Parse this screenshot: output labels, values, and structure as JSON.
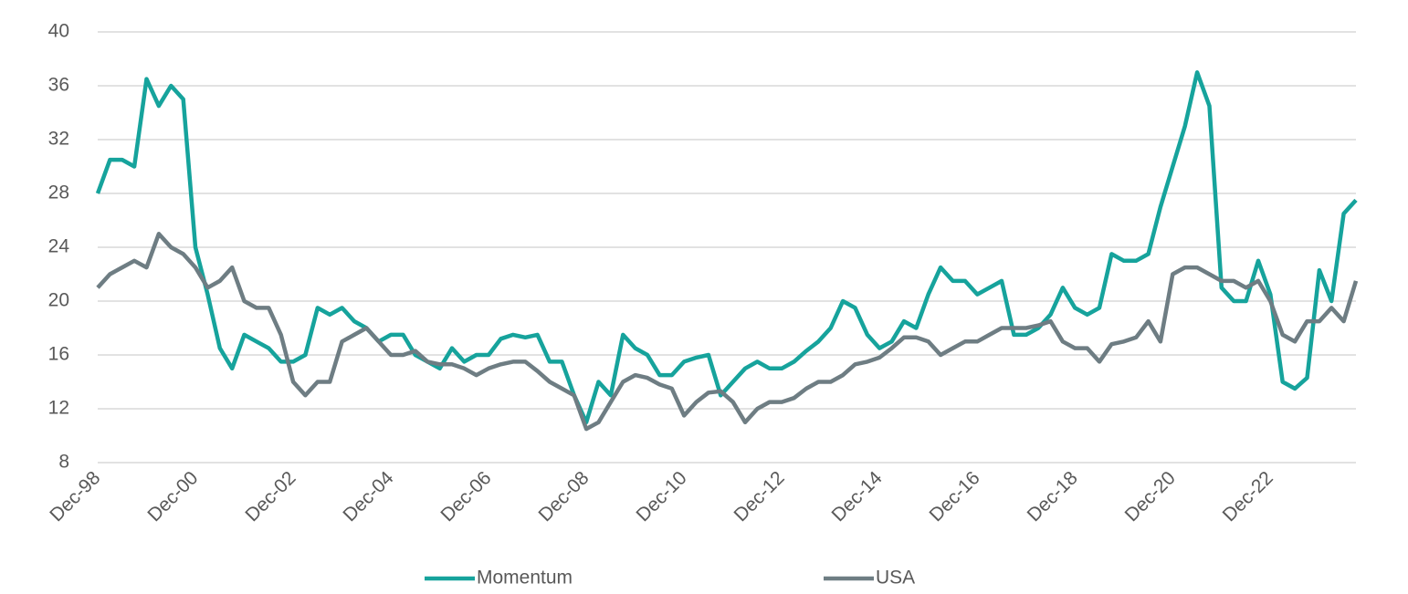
{
  "chart_data": {
    "type": "line",
    "categories": [
      "Dec-98",
      null,
      null,
      null,
      null,
      null,
      null,
      null,
      "Dec-00",
      null,
      null,
      null,
      null,
      null,
      null,
      null,
      "Dec-02",
      null,
      null,
      null,
      null,
      null,
      null,
      null,
      "Dec-04",
      null,
      null,
      null,
      null,
      null,
      null,
      null,
      "Dec-06",
      null,
      null,
      null,
      null,
      null,
      null,
      null,
      "Dec-08",
      null,
      null,
      null,
      null,
      null,
      null,
      null,
      "Dec-10",
      null,
      null,
      null,
      null,
      null,
      null,
      null,
      "Dec-12",
      null,
      null,
      null,
      null,
      null,
      null,
      null,
      "Dec-14",
      null,
      null,
      null,
      null,
      null,
      null,
      null,
      "Dec-16",
      null,
      null,
      null,
      null,
      null,
      null,
      null,
      "Dec-18",
      null,
      null,
      null,
      null,
      null,
      null,
      null,
      "Dec-20",
      null,
      null,
      null,
      null,
      null,
      null,
      null,
      "Dec-22",
      null,
      null,
      null,
      null,
      null,
      null,
      null
    ],
    "series": [
      {
        "name": "Momentum",
        "color": "#16a39c",
        "values": [
          28,
          30.5,
          30.5,
          30,
          36.5,
          34.5,
          36,
          35,
          24,
          20.5,
          16.5,
          15,
          17.5,
          17,
          16.5,
          15.5,
          15.5,
          16,
          19.5,
          19,
          19.5,
          18.5,
          18,
          17,
          17.5,
          17.5,
          16,
          15.5,
          15,
          16.5,
          15.5,
          16,
          16,
          17.2,
          17.5,
          17.3,
          17.5,
          15.5,
          15.5,
          13,
          11,
          14,
          13,
          17.5,
          16.5,
          16,
          14.5,
          14.5,
          15.5,
          15.8,
          16,
          13,
          14,
          15,
          15.5,
          15,
          15,
          15.5,
          16.3,
          17,
          18,
          20,
          19.5,
          17.5,
          16.5,
          17,
          18.5,
          18,
          20.5,
          22.5,
          21.5,
          21.5,
          20.5,
          21,
          21.5,
          17.5,
          17.5,
          18,
          19,
          21,
          19.5,
          19,
          19.5,
          23.5,
          23,
          23,
          23.5,
          27,
          30,
          33,
          37,
          34.5,
          21,
          20,
          20,
          23,
          20.5,
          14,
          13.5,
          14.3,
          22.3,
          20,
          26.5,
          27.5
        ]
      },
      {
        "name": "USA",
        "color": "#6e7d83",
        "values": [
          21,
          22,
          22.5,
          23,
          22.5,
          25,
          24,
          23.5,
          22.5,
          21,
          21.5,
          22.5,
          20,
          19.5,
          19.5,
          17.5,
          14,
          13,
          14,
          14,
          17,
          17.5,
          18,
          17,
          16,
          16,
          16.3,
          15.5,
          15.3,
          15.3,
          15,
          14.5,
          15,
          15.3,
          15.5,
          15.5,
          14.8,
          14,
          13.5,
          13,
          10.5,
          11,
          12.5,
          14,
          14.5,
          14.3,
          13.8,
          13.5,
          11.5,
          12.5,
          13.2,
          13.3,
          12.5,
          11,
          12,
          12.5,
          12.5,
          12.8,
          13.5,
          14,
          14,
          14.5,
          15.3,
          15.5,
          15.8,
          16.5,
          17.3,
          17.3,
          17,
          16,
          16.5,
          17,
          17,
          17.5,
          18,
          18,
          18,
          18.2,
          18.5,
          17,
          16.5,
          16.5,
          15.5,
          16.8,
          17,
          17.3,
          18.5,
          17,
          22,
          22.5,
          22.5,
          22,
          21.5,
          21.5,
          21,
          21.5,
          20,
          17.5,
          17,
          18.5,
          18.5,
          19.5,
          18.5,
          21.5
        ]
      }
    ],
    "ylim": [
      8,
      40
    ],
    "yticks": [
      8,
      12,
      16,
      20,
      24,
      28,
      32,
      36,
      40
    ],
    "grid": true,
    "legend": "bottom"
  }
}
